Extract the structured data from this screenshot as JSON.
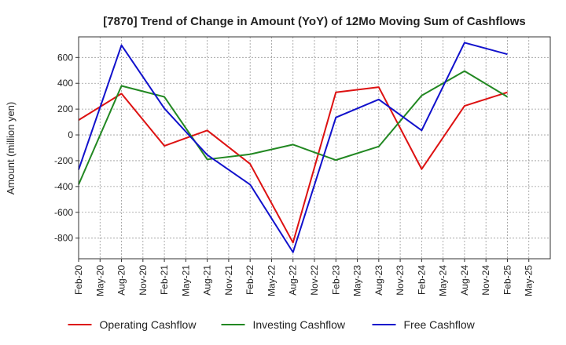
{
  "chart_data": {
    "type": "line",
    "title": "[7870]  Trend of Change in Amount (YoY) of 12Mo Moving Sum of Cashflows",
    "xlabel": "",
    "ylabel": "Amount (million yen)",
    "ylim": [
      -960,
      760
    ],
    "yticks": [
      600,
      400,
      200,
      0,
      -200,
      -400,
      -600,
      -800
    ],
    "grid": true,
    "legend_position": "bottom",
    "categories": [
      "Feb-20",
      "May-20",
      "Aug-20",
      "Nov-20",
      "Feb-21",
      "May-21",
      "Aug-21",
      "Nov-21",
      "Feb-22",
      "May-22",
      "Aug-22",
      "Nov-22",
      "Feb-23",
      "May-23",
      "Aug-23",
      "Nov-23",
      "Feb-24",
      "May-24",
      "Aug-24",
      "Nov-24",
      "Feb-25",
      "May-25"
    ],
    "series": [
      {
        "name": "Operating Cashflow",
        "color": "#dd1111",
        "points": [
          [
            "Feb-20",
            115
          ],
          [
            "Aug-20",
            320
          ],
          [
            "Feb-21",
            -85
          ],
          [
            "Aug-21",
            35
          ],
          [
            "Feb-22",
            -225
          ],
          [
            "Aug-22",
            -835
          ],
          [
            "Feb-23",
            330
          ],
          [
            "Aug-23",
            370
          ],
          [
            "Feb-24",
            -265
          ],
          [
            "Aug-24",
            225
          ],
          [
            "Feb-25",
            330
          ]
        ]
      },
      {
        "name": "Investing Cashflow",
        "color": "#228822",
        "points": [
          [
            "Feb-20",
            -385
          ],
          [
            "Aug-20",
            380
          ],
          [
            "Feb-21",
            295
          ],
          [
            "Aug-21",
            -190
          ],
          [
            "Feb-22",
            -150
          ],
          [
            "Aug-22",
            -75
          ],
          [
            "Feb-23",
            -195
          ],
          [
            "Aug-23",
            -90
          ],
          [
            "Feb-24",
            305
          ],
          [
            "Aug-24",
            495
          ],
          [
            "Feb-25",
            295
          ]
        ]
      },
      {
        "name": "Free Cashflow",
        "color": "#1111cc",
        "points": [
          [
            "Feb-20",
            -270
          ],
          [
            "Aug-20",
            695
          ],
          [
            "Feb-21",
            205
          ],
          [
            "Aug-21",
            -155
          ],
          [
            "Feb-22",
            -385
          ],
          [
            "Aug-22",
            -910
          ],
          [
            "Feb-23",
            135
          ],
          [
            "Aug-23",
            275
          ],
          [
            "Feb-24",
            35
          ],
          [
            "Aug-24",
            715
          ],
          [
            "Feb-25",
            625
          ]
        ]
      }
    ]
  }
}
